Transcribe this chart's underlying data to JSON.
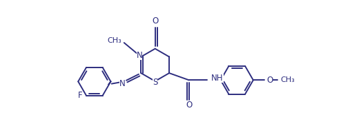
{
  "bg_color": "#ffffff",
  "line_color": "#2d2d7f",
  "line_width": 1.4,
  "font_size": 8.5,
  "figsize": [
    4.94,
    1.96
  ],
  "dpi": 100,
  "xlim": [
    -2.3,
    3.5
  ],
  "ylim": [
    -1.3,
    1.3
  ]
}
